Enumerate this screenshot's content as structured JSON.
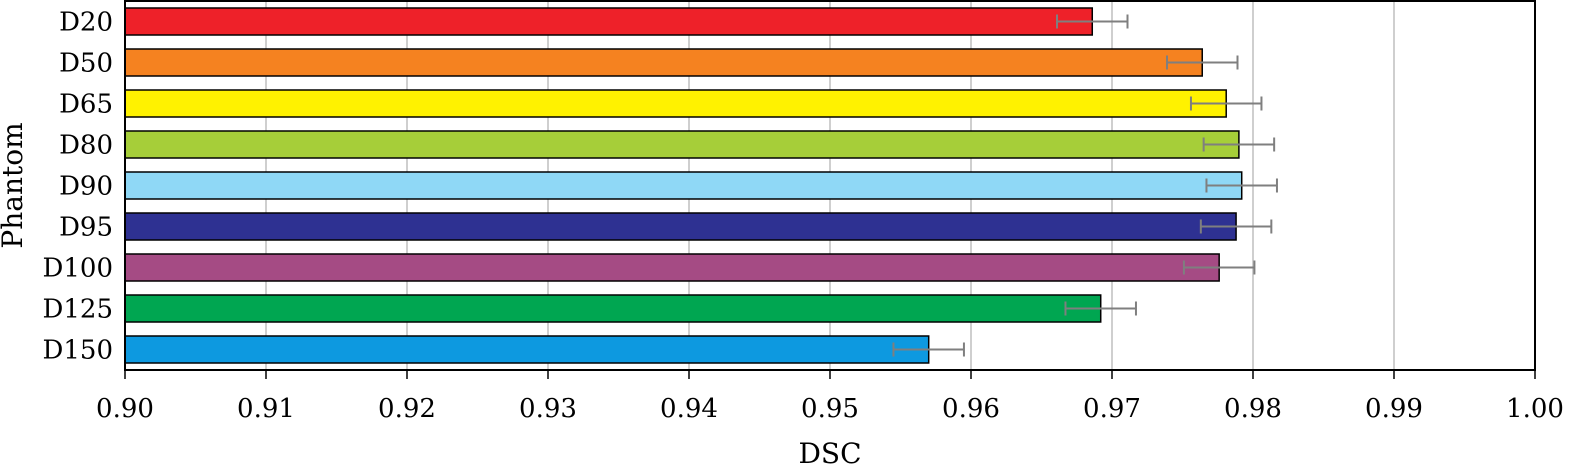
{
  "chart_data": {
    "type": "bar",
    "orientation": "horizontal",
    "title": "",
    "xlabel": "DSC",
    "ylabel": "Phantom",
    "xlim": [
      0.9,
      1.0
    ],
    "x_ticks": [
      "0.90",
      "0.91",
      "0.92",
      "0.93",
      "0.94",
      "0.95",
      "0.96",
      "0.97",
      "0.98",
      "0.99",
      "1.00"
    ],
    "grid": "vertical",
    "legend": "none",
    "categories": [
      "D20",
      "D50",
      "D65",
      "D80",
      "D90",
      "D95",
      "D100",
      "D125",
      "D150"
    ],
    "values": [
      0.9686,
      0.9764,
      0.9781,
      0.979,
      0.9792,
      0.9788,
      0.9776,
      0.9692,
      0.957
    ],
    "errors": [
      0.0025,
      0.0025,
      0.0025,
      0.0025,
      0.0025,
      0.0025,
      0.0025,
      0.0025,
      0.0025
    ],
    "colors": [
      "#ee2129",
      "#f58220",
      "#fff200",
      "#a6ce39",
      "#8fd8f6",
      "#2e3192",
      "#a54b84",
      "#00a651",
      "#0d99e0"
    ],
    "error_bar_color": "#7f7f7f"
  }
}
